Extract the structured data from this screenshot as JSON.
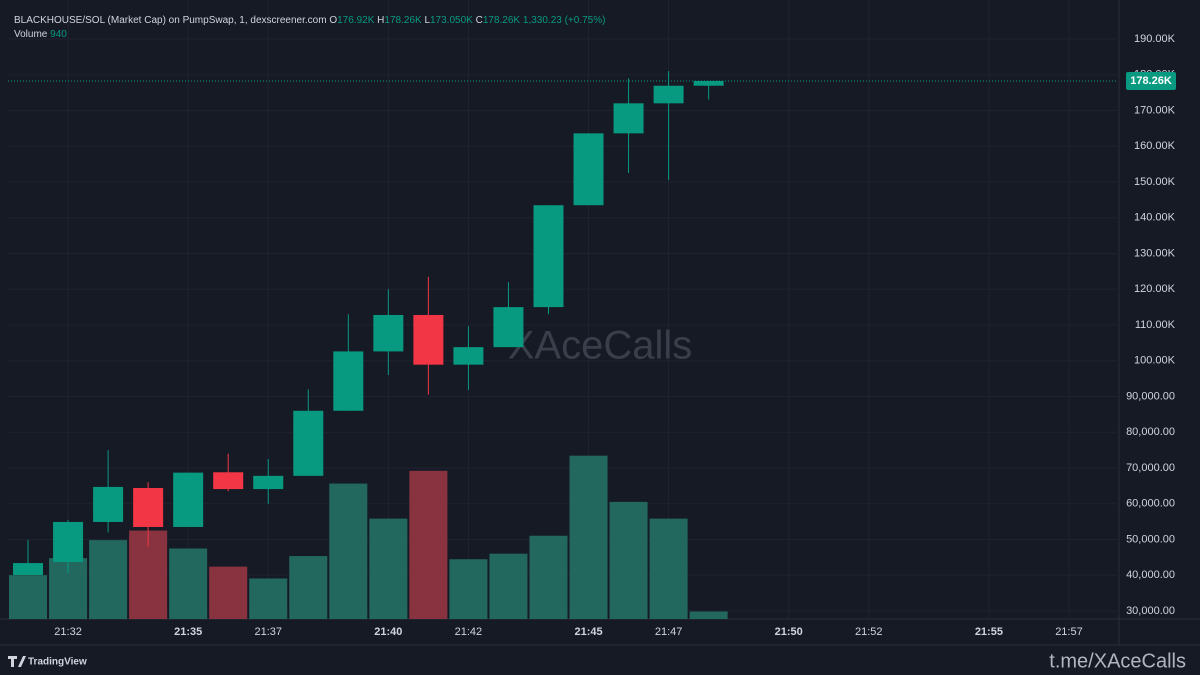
{
  "chart_data": {
    "type": "candlestick",
    "title": "BLACKHOUSE/SOL (Market Cap) on PumpSwap, 1, dexscreener.com",
    "legend": {
      "o_label": "O",
      "o": "176.92K",
      "h_label": "H",
      "h": "178.26K",
      "l_label": "L",
      "l": "173.050K",
      "c_label": "C",
      "c": "178.26K",
      "change": "1,330.23 (+0.75%)",
      "volume_label": "Volume",
      "volume": "940"
    },
    "last_price_label": "178.26K",
    "last_price": 178260,
    "watermark": "XAceCalls",
    "brand": "TradingView",
    "credit": "t.me/XAceCalls",
    "up_color": "#089981",
    "down_color": "#f23645",
    "up_volume_color": "#22685f",
    "down_volume_color": "#8a3340",
    "open": [
      40070,
      43700,
      54900,
      64400,
      53500,
      68800,
      64100,
      67800,
      86000,
      102600,
      112800,
      98900,
      103800,
      115000,
      143500,
      163600,
      172000,
      176920
    ],
    "high": [
      49900,
      55500,
      75000,
      66000,
      68700,
      74000,
      72500,
      92000,
      113000,
      120000,
      123500,
      109700,
      122000,
      143500,
      163600,
      179000,
      181000,
      178260
    ],
    "low": [
      40070,
      40500,
      52000,
      48000,
      53500,
      63500,
      60000,
      67800,
      86000,
      96000,
      90500,
      91800,
      103800,
      113000,
      143500,
      152500,
      150500,
      173050
    ],
    "close": [
      43400,
      54900,
      64700,
      53500,
      68700,
      64100,
      67800,
      86000,
      102600,
      112800,
      98900,
      103800,
      115000,
      143500,
      163600,
      172000,
      176920,
      178260
    ],
    "volume": [
      5500,
      7640,
      9900,
      11100,
      8850,
      6570,
      5090,
      7900,
      17000,
      12600,
      18600,
      7500,
      8200,
      10450,
      20500,
      14700,
      12600,
      940
    ],
    "volume_ylim": [
      0,
      77700
    ],
    "ylim": [
      27760,
      200900
    ],
    "yticks": [
      {
        "value": 30000,
        "label": "30,000.00"
      },
      {
        "value": 40000,
        "label": "40,000.00"
      },
      {
        "value": 50000,
        "label": "50,000.00"
      },
      {
        "value": 60000,
        "label": "60,000.00"
      },
      {
        "value": 70000,
        "label": "70,000.00"
      },
      {
        "value": 80000,
        "label": "80,000.00"
      },
      {
        "value": 90000,
        "label": "90,000.00"
      },
      {
        "value": 100000,
        "label": "100.00K"
      },
      {
        "value": 110000,
        "label": "110.00K"
      },
      {
        "value": 120000,
        "label": "120.00K"
      },
      {
        "value": 130000,
        "label": "130.00K"
      },
      {
        "value": 140000,
        "label": "140.00K"
      },
      {
        "value": 150000,
        "label": "150.00K"
      },
      {
        "value": 160000,
        "label": "160.00K"
      },
      {
        "value": 170000,
        "label": "170.00K"
      },
      {
        "value": 180000,
        "label": "180.00K"
      },
      {
        "value": 190000,
        "label": "190.00K"
      }
    ],
    "xlim": [
      -0.5,
      27.2
    ],
    "xticks": [
      {
        "value": 1,
        "label": "21:32"
      },
      {
        "value": 4,
        "label": "21:35"
      },
      {
        "value": 6,
        "label": "21:37"
      },
      {
        "value": 9,
        "label": "21:40"
      },
      {
        "value": 11,
        "label": "21:42"
      },
      {
        "value": 14,
        "label": "21:45"
      },
      {
        "value": 16,
        "label": "21:47"
      },
      {
        "value": 19,
        "label": "21:50"
      },
      {
        "value": 21,
        "label": "21:52"
      },
      {
        "value": 24,
        "label": "21:55"
      },
      {
        "value": 26,
        "label": "21:57"
      }
    ],
    "grid": true
  }
}
